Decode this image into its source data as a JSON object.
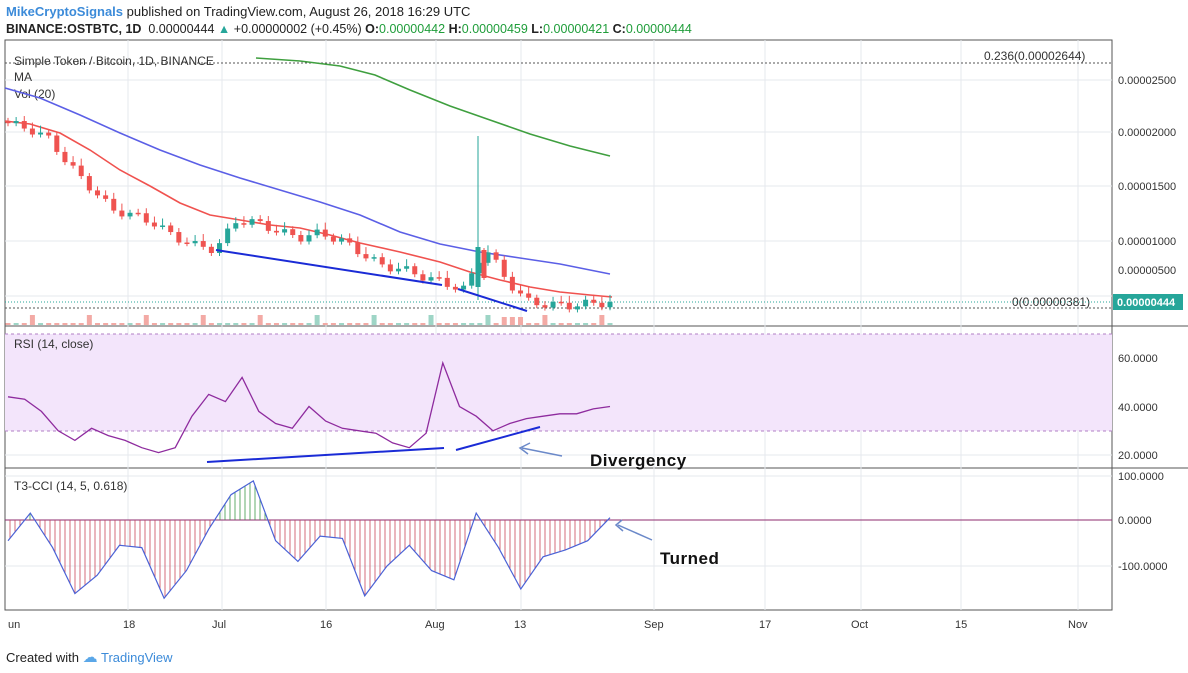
{
  "header": {
    "author": "MikeCryptoSignals",
    "published": "published on TradingView.com, August 26, 2018 16:29 UTC",
    "symbol": "BINANCE:OSTBTC, 1D",
    "last": "0.00000444",
    "change": "+0.00000002 (+0.45%)",
    "o_label": "O:",
    "o": "0.00000442",
    "h_label": "H:",
    "h": "0.00000459",
    "l_label": "L:",
    "l": "0.00000421",
    "c_label": "C:",
    "c": "0.00000444"
  },
  "price_pane": {
    "title": "Simple Token / Bitcoin, 1D, BINANCE",
    "ma_label": "MA",
    "vol_label": "Vol (20)",
    "fib_top_label": "0.236(0.00002644)",
    "fib_bottom_label": "0(0.00000381)",
    "last_price_badge": "0.00000444",
    "yticks": [
      "0.00002500",
      "0.00002000",
      "0.00001500",
      "0.00001000",
      "0.00000500"
    ]
  },
  "rsi_pane": {
    "title": "RSI (14, close)",
    "yticks": [
      "60.0000",
      "40.0000",
      "20.0000"
    ],
    "annotation": "Divergency"
  },
  "cci_pane": {
    "title": "T3-CCI (14, 5, 0.618)",
    "yticks": [
      "100.0000",
      "0.0000",
      "-100.0000"
    ],
    "annotation": "Turned"
  },
  "xaxis": {
    "labels": [
      "un",
      "18",
      "Jul",
      "16",
      "Aug",
      "13",
      "Sep",
      "17",
      "Oct",
      "15",
      "Nov"
    ]
  },
  "footer": {
    "created_with": "Created with",
    "brand": "TradingView"
  },
  "colors": {
    "up": "#26a69a",
    "down": "#ef5350",
    "ma_fast": "#f0524f",
    "ma_mid": "#5b5fe6",
    "ma_slow": "#3f9f3f",
    "rsi": "#8e2b9e",
    "trend": "#1a2bd6",
    "cci": "#4a62d6",
    "rsi_band": "#f3e5fb"
  },
  "chart_data": [
    {
      "type": "line",
      "title": "Simple Token / Bitcoin, 1D, BINANCE",
      "note": "OHLC candlesticks with moving averages",
      "ylim": [
        2.3e-06,
        2.88e-05
      ],
      "series": [
        {
          "name": "close (approx)",
          "values": [
            2.1e-05,
            2.05e-05,
            1.95e-05,
            1.7e-05,
            1.5e-05,
            1.3e-05,
            1.25e-05,
            1.18e-05,
            1.05e-05,
            9.7e-06,
            9.3e-06,
            1.2e-05,
            1.18e-05,
            1.1e-05,
            1.04e-05,
            1.08e-05,
            1.02e-05,
            9e-06,
            7.8e-06,
            7.5e-06,
            6.8e-06,
            6.2e-06,
            5.6e-06,
            9.5e-06,
            6.5e-06,
            4.5e-06,
            4.2e-06,
            4.1e-06,
            4.3e-06,
            4.4e-06
          ]
        },
        {
          "name": "MA green",
          "values": [
            2.72e-05,
            2.68e-05,
            2.58e-05,
            2.4e-05,
            2.2e-05,
            2e-05,
            1.85e-05,
            1.78e-05
          ]
        },
        {
          "name": "MA blue",
          "values": [
            2.42e-05,
            2.25e-05,
            2e-05,
            1.75e-05,
            1.55e-05,
            1.4e-05,
            1.18e-05,
            9.5e-06,
            8.2e-06,
            7.1e-06
          ]
        },
        {
          "name": "MA red",
          "values": [
            2.1e-05,
            1.9e-05,
            1.6e-05,
            1.3e-05,
            1.15e-05,
            1.1e-05,
            9.5e-06,
            8e-06,
            6.5e-06,
            4.8e-06
          ]
        }
      ]
    },
    {
      "type": "line",
      "title": "RSI (14, close)",
      "ylim": [
        15,
        72
      ],
      "series": [
        {
          "name": "RSI",
          "values": [
            44,
            43,
            38,
            30,
            26,
            31,
            28,
            26,
            23,
            21,
            23,
            36,
            45,
            42,
            52,
            38,
            33,
            31,
            40,
            34,
            31,
            30,
            29,
            25,
            23,
            29,
            58,
            40,
            36,
            30,
            33,
            35,
            36,
            37,
            37,
            39,
            40
          ]
        }
      ]
    },
    {
      "type": "line",
      "title": "T3-CCI (14, 5, 0.618)",
      "ylim": [
        -180,
        100
      ],
      "series": [
        {
          "name": "T3-CCI",
          "values": [
            -45,
            15,
            -60,
            -160,
            -120,
            -55,
            -60,
            -170,
            -110,
            -20,
            55,
            85,
            -45,
            -90,
            -35,
            -40,
            -165,
            -100,
            -55,
            -110,
            -130,
            15,
            -60,
            -150,
            -80,
            -65,
            -45,
            5
          ]
        }
      ]
    }
  ]
}
